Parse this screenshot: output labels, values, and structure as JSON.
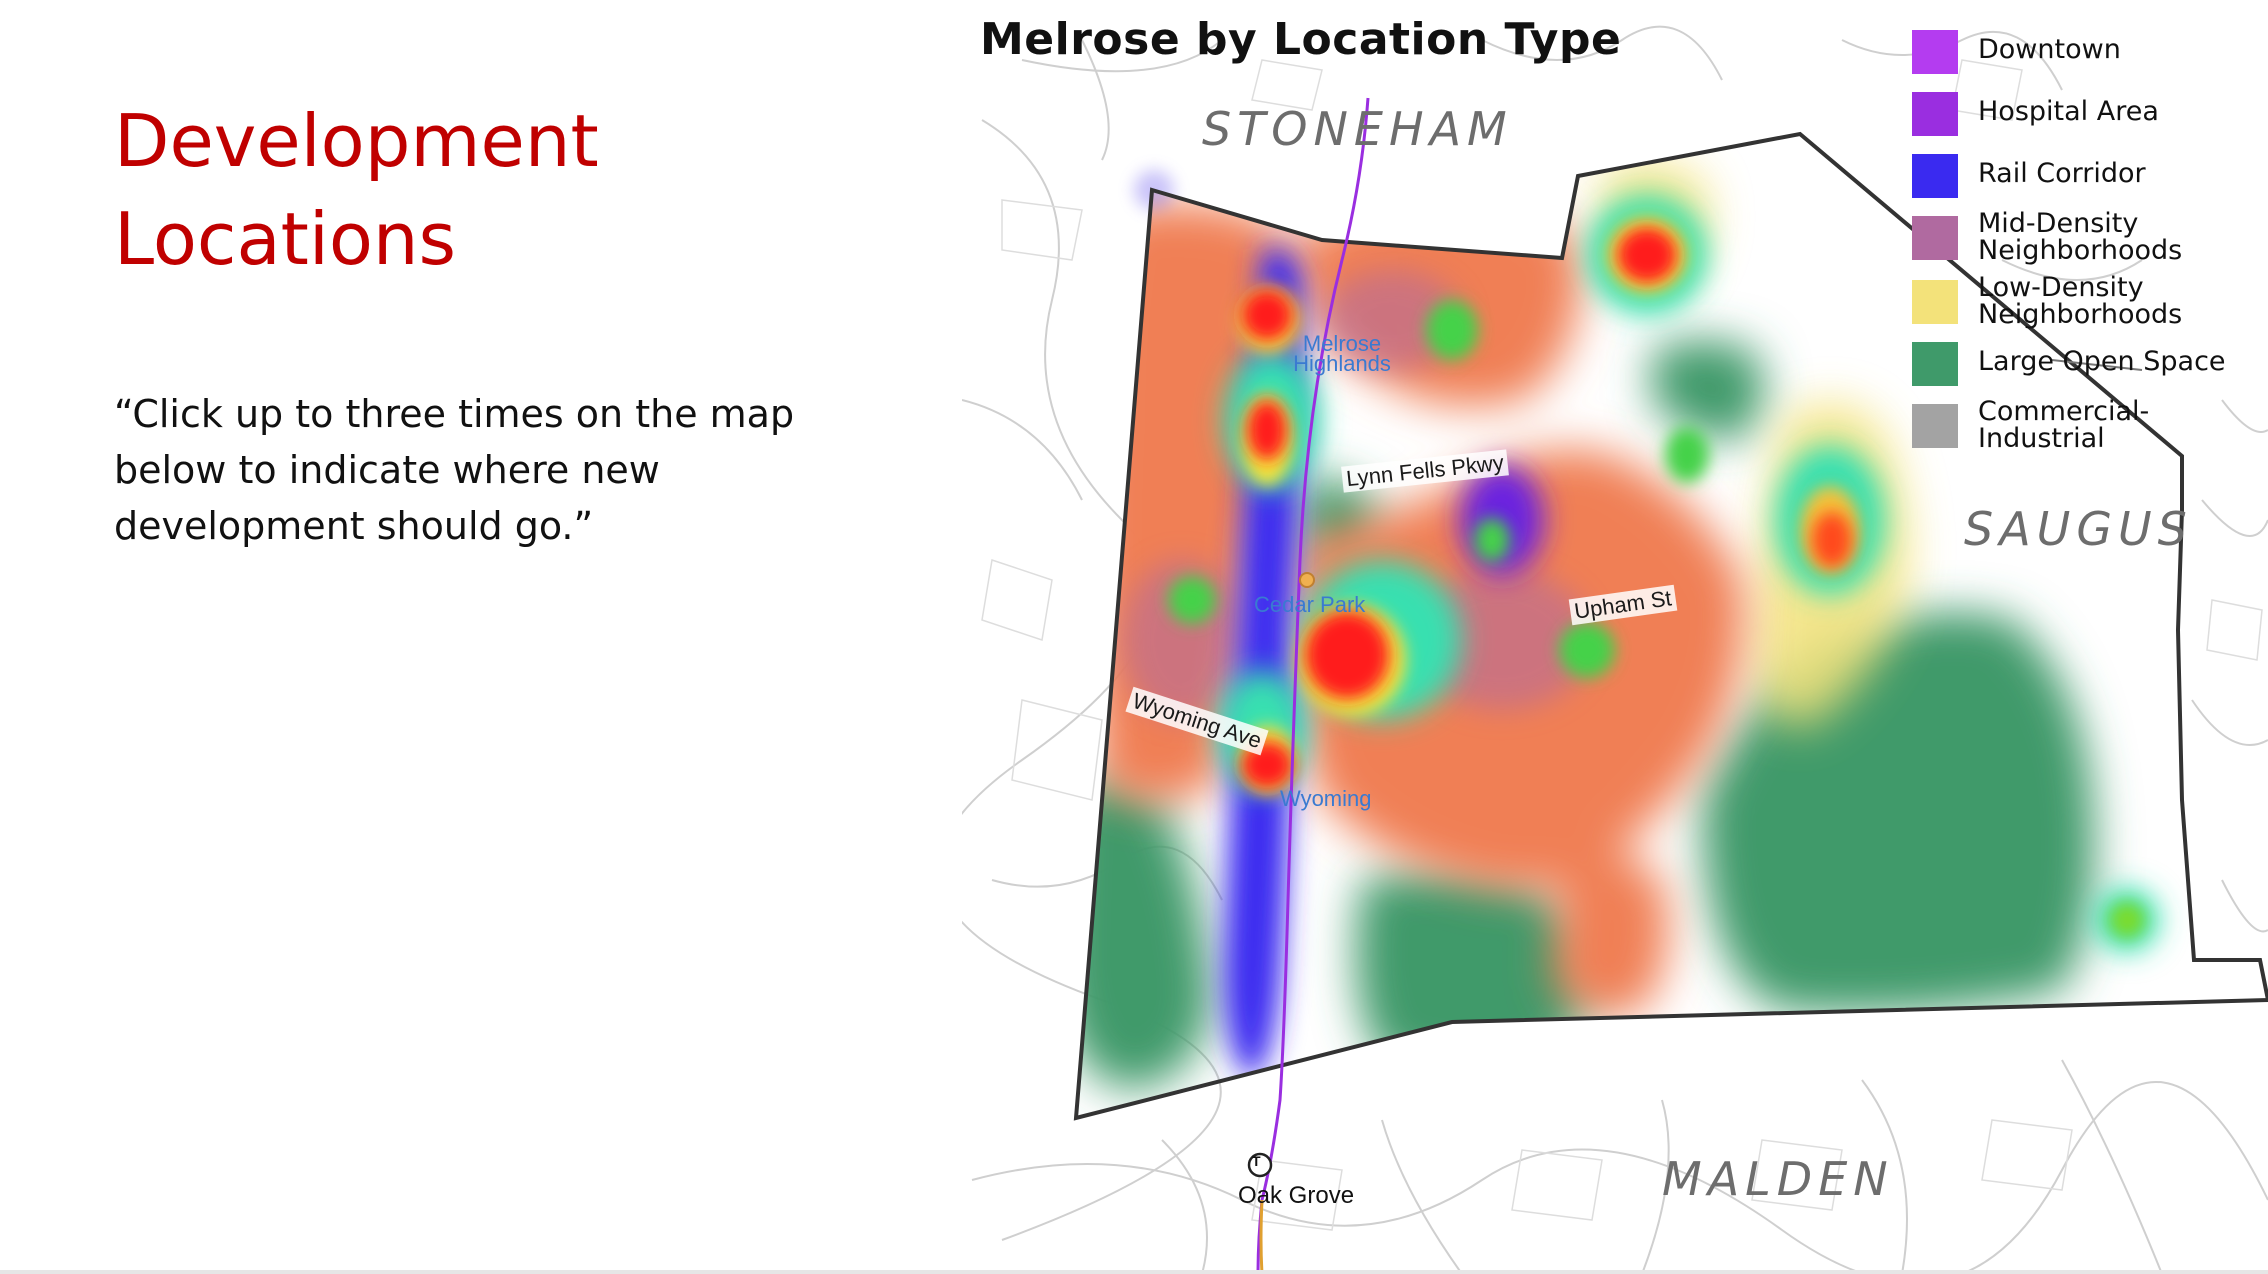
{
  "slide": {
    "title": "Development Locations",
    "instruction": "“Click up to three times on the map below to indicate where new development should go.”"
  },
  "map": {
    "title": "Melrose by Location Type",
    "towns": {
      "stoneham": "STONEHAM",
      "saugus": "SAUGUS",
      "malden": "MALDEN"
    },
    "streets": {
      "lynn_fells": "Lynn Fells Pkwy",
      "upham": "Upham St",
      "wyoming_ave": "Wyoming Ave"
    },
    "places": {
      "highlands": "Melrose Highlands",
      "cedar_park": "Cedar Park",
      "wyoming": "Wyoming"
    },
    "stations": {
      "oak_grove": "Oak Grove",
      "transit_symbol": "T"
    },
    "legend": [
      {
        "label": "Downtown",
        "color": "#b43cf0"
      },
      {
        "label": "Hospital Area",
        "color": "#9a2ee0"
      },
      {
        "label": "Rail Corridor",
        "color": "#3a2af0"
      },
      {
        "label": "Mid-Density Neighborhoods",
        "color": "#b06aa0"
      },
      {
        "label": "Low-Density Neighborhoods",
        "color": "#f3e27a"
      },
      {
        "label": "Large Open Space",
        "color": "#3f9a6a"
      },
      {
        "label": "Commercial-Industrial",
        "color": "#a3a3a3"
      }
    ]
  }
}
